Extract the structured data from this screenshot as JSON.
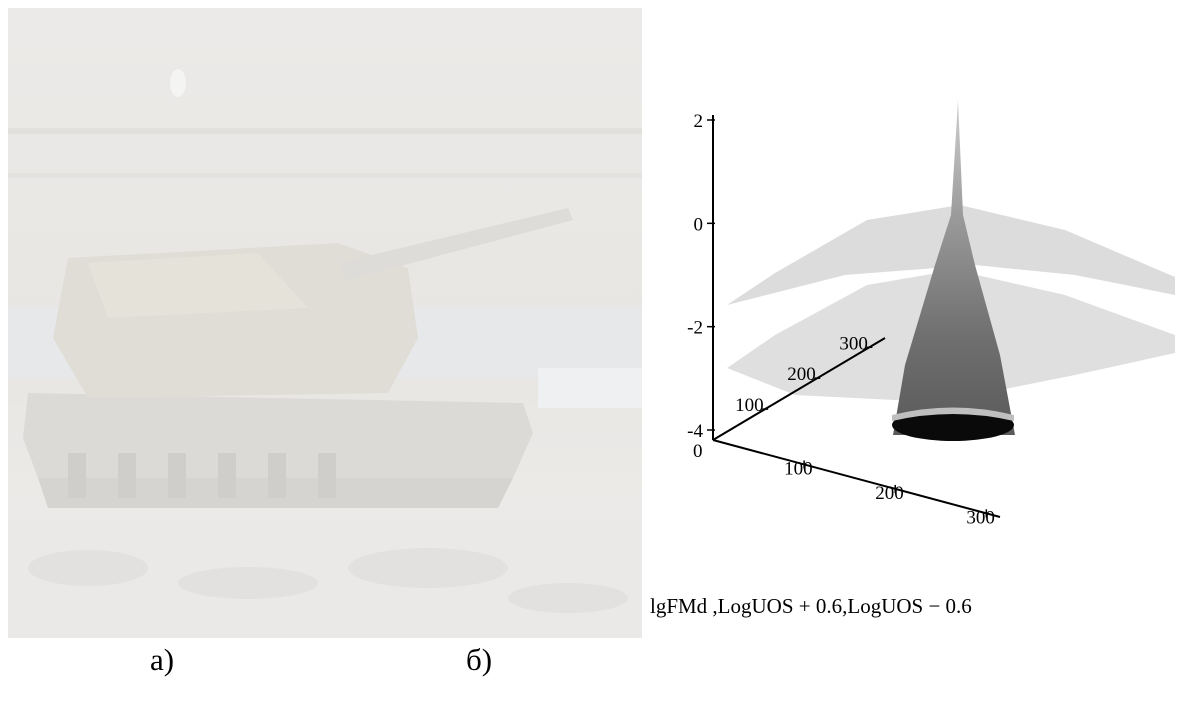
{
  "figure": {
    "panel_a_caption": "а)",
    "panel_b_caption": "б)",
    "photo_subject": "self-propelled artillery vehicle (faded photograph)"
  },
  "chart_data": {
    "type": "surface3d",
    "z_axis": {
      "ticks": [
        "2",
        "0",
        "-2",
        "-4"
      ],
      "range": [
        -4,
        2
      ]
    },
    "x_axis": {
      "ticks": [
        "0",
        "100",
        "200",
        "300"
      ]
    },
    "y_axis": {
      "ticks": [
        "100",
        "200",
        "300"
      ]
    },
    "legend_text": "lgFMd ,LogUOS + 0.6,LogUOS − 0.6",
    "series": [
      {
        "name": "lgFMd",
        "shape": "spike-cone",
        "peak_z": 2.0,
        "base_z": -4.0,
        "colormap": "grayscale"
      },
      {
        "name": "LogUOS + 0.6",
        "shape": "dome-sheet",
        "approx_z": 0.0
      },
      {
        "name": "LogUOS − 0.6",
        "shape": "dome-sheet",
        "approx_z": -2.0
      }
    ]
  },
  "colors": {
    "photo_tint": "#e8e6e2",
    "upper_sheet": "#d8d8d8",
    "lower_sheet": "#dcdcdc",
    "cone_dark": "#0a0a0a",
    "cone_mid": "#7a7a7a",
    "cone_light": "#c8c8c8"
  }
}
